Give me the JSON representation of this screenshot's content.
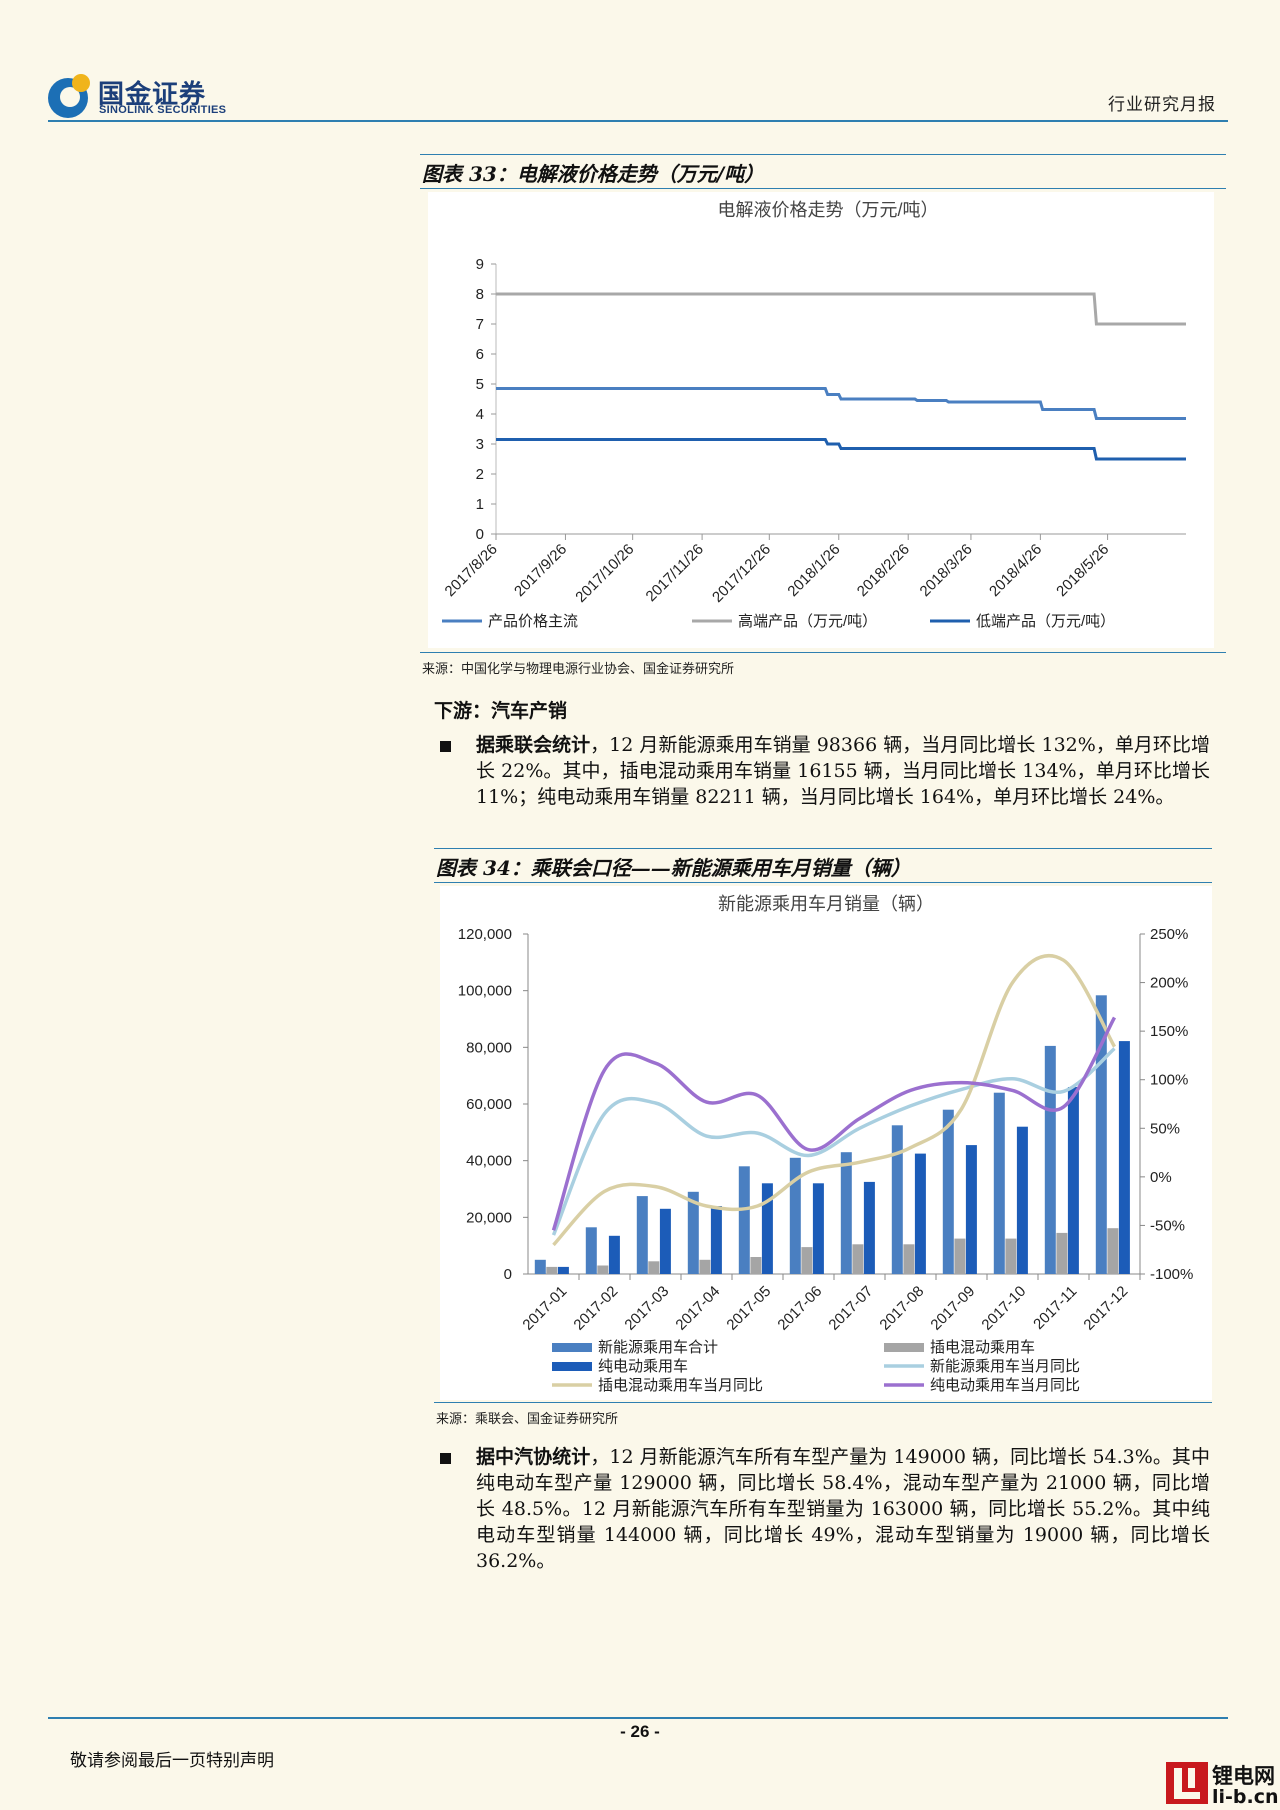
{
  "header": {
    "logo_cn": "国金证券",
    "logo_en": "SINOLINK SECURITIES",
    "report_type": "行业研究月报"
  },
  "figure33": {
    "caption": "图表 33：电解液价格走势（万元/吨）",
    "source": "来源：中国化学与物理电源行业协会、国金证券研究所"
  },
  "section_title": "下游：汽车产销",
  "para1": {
    "lead": "据乘联会统计",
    "text": "，12 月新能源乘用车销量 98366 辆，当月同比增长 132%，单月环比增长 22%。其中，插电混动乘用车销量 16155 辆，当月同比增长 134%，单月环比增长 11%；纯电动乘用车销量 82211 辆，当月同比增长 164%，单月环比增长 24%。"
  },
  "figure34": {
    "caption": "图表 34：乘联会口径——新能源乘用车月销量（辆）",
    "source": "来源：乘联会、国金证券研究所"
  },
  "para2": {
    "lead": "据中汽协统计",
    "text": "，12 月新能源汽车所有车型产量为 149000 辆，同比增长 54.3%。其中纯电动车型产量 129000 辆，同比增长 58.4%，混动车型产量为 21000 辆，同比增长 48.5%。12 月新能源汽车所有车型销量为 163000 辆，同比增长 55.2%。其中纯电动车型销量 144000 辆，同比增长 49%，混动车型销量为 19000 辆，同比增长 36.2%。"
  },
  "footer": {
    "page": "- 26 -",
    "disclaimer": "敬请参阅最后一页特别声明",
    "watermark_cn": "锂电网",
    "watermark_en": "li-b.cn"
  },
  "chart_data": [
    {
      "type": "line",
      "title": "电解液价格走势（万元/吨）",
      "ylim": [
        0,
        9
      ],
      "y_ticks": [
        "0",
        "1",
        "2",
        "3",
        "4",
        "5",
        "6",
        "7",
        "8",
        "9"
      ],
      "x_ticks": [
        "2017/8/26",
        "2017/9/26",
        "2017/10/26",
        "2017/11/26",
        "2017/12/26",
        "2018/1/26",
        "2018/2/26",
        "2018/3/26",
        "2018/4/26",
        "2018/5/26"
      ],
      "x_range": [
        "2017/8/26",
        "2018/6/30"
      ],
      "legend_position": "bottom",
      "series": [
        {
          "name": "产品价格主流",
          "color": "#4a7fc1",
          "points": [
            [
              "2017/8/26",
              4.85
            ],
            [
              "2018/1/20",
              4.85
            ],
            [
              "2018/1/21",
              4.65
            ],
            [
              "2018/1/26",
              4.65
            ],
            [
              "2018/1/27",
              4.5
            ],
            [
              "2018/3/1",
              4.5
            ],
            [
              "2018/3/2",
              4.45
            ],
            [
              "2018/3/15",
              4.45
            ],
            [
              "2018/3/16",
              4.4
            ],
            [
              "2018/4/26",
              4.4
            ],
            [
              "2018/4/27",
              4.15
            ],
            [
              "2018/5/20",
              4.15
            ],
            [
              "2018/5/21",
              3.85
            ],
            [
              "2018/6/30",
              3.85
            ]
          ]
        },
        {
          "name": "高端产品（万元/吨）",
          "color": "#a8a8a8",
          "points": [
            [
              "2017/8/26",
              8.0
            ],
            [
              "2018/5/20",
              8.0
            ],
            [
              "2018/5/21",
              7.0
            ],
            [
              "2018/6/30",
              7.0
            ]
          ]
        },
        {
          "name": "低端产品（万元/吨）",
          "color": "#1f5fae",
          "points": [
            [
              "2017/8/26",
              3.15
            ],
            [
              "2018/1/20",
              3.15
            ],
            [
              "2018/1/21",
              3.0
            ],
            [
              "2018/1/26",
              3.0
            ],
            [
              "2018/1/27",
              2.85
            ],
            [
              "2018/5/20",
              2.85
            ],
            [
              "2018/5/21",
              2.5
            ],
            [
              "2018/6/30",
              2.5
            ]
          ]
        }
      ]
    },
    {
      "type": "bar",
      "title": "新能源乘用车月销量（辆）",
      "categories": [
        "2017-01",
        "2017-02",
        "2017-03",
        "2017-04",
        "2017-05",
        "2017-06",
        "2017-07",
        "2017-08",
        "2017-09",
        "2017-10",
        "2017-11",
        "2017-12"
      ],
      "ylim": [
        0,
        120000
      ],
      "y_ticks": [
        "0",
        "20,000",
        "40,000",
        "60,000",
        "80,000",
        "100,000",
        "120,000"
      ],
      "y2lim": [
        -100,
        250
      ],
      "y2_ticks": [
        "-100%",
        "-50%",
        "0%",
        "50%",
        "100%",
        "150%",
        "200%",
        "250%"
      ],
      "legend_position": "bottom",
      "series": [
        {
          "name": "新能源乘用车合计",
          "kind": "bar",
          "axis": "left",
          "color": "#4a7fc1",
          "values": [
            5000,
            16500,
            27500,
            29000,
            38000,
            41000,
            43000,
            52500,
            58000,
            64000,
            80500,
            98366
          ]
        },
        {
          "name": "插电混动乘用车",
          "kind": "bar",
          "axis": "left",
          "color": "#a5a5a5",
          "values": [
            2500,
            3000,
            4500,
            5000,
            6000,
            9500,
            10500,
            10500,
            12500,
            12500,
            14500,
            16155
          ]
        },
        {
          "name": "纯电动乘用车",
          "kind": "bar",
          "axis": "left",
          "color": "#1c5cb8",
          "values": [
            2500,
            13500,
            23000,
            24000,
            32000,
            32000,
            32500,
            42500,
            45500,
            52000,
            66000,
            82211
          ]
        },
        {
          "name": "新能源乘用车当月同比",
          "kind": "line",
          "axis": "right",
          "color": "#a9cfe0",
          "values": [
            -60,
            65,
            76,
            42,
            45,
            22,
            50,
            73,
            90,
            101,
            88,
            132
          ]
        },
        {
          "name": "插电混动乘用车当月同比",
          "kind": "line",
          "axis": "right",
          "color": "#d9cfa4",
          "values": [
            -70,
            -15,
            -10,
            -30,
            -30,
            5,
            15,
            30,
            70,
            200,
            223,
            134
          ]
        },
        {
          "name": "纯电动乘用车当月同比",
          "kind": "line",
          "axis": "right",
          "color": "#9b70cf",
          "values": [
            -55,
            110,
            117,
            77,
            84,
            28,
            60,
            89,
            97,
            89,
            72,
            164
          ]
        }
      ]
    }
  ]
}
